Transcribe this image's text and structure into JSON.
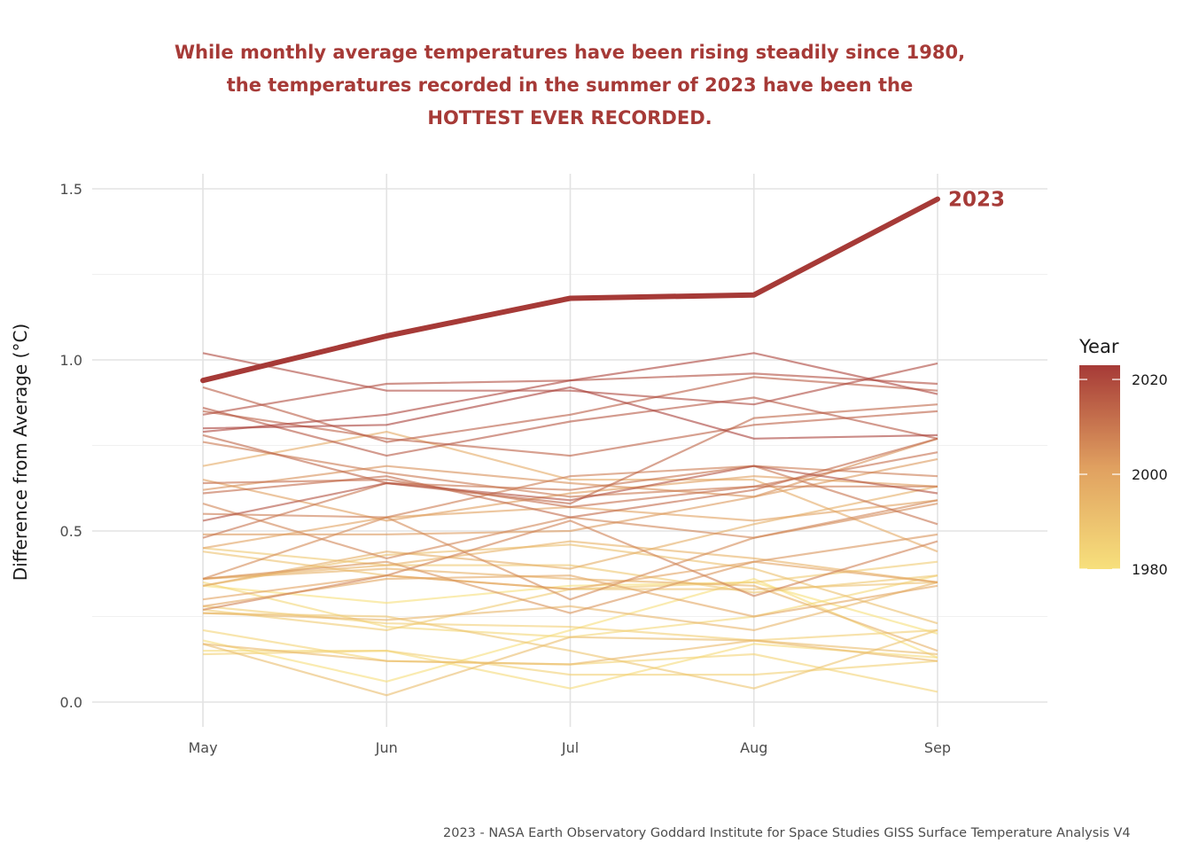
{
  "chart_data": {
    "type": "line",
    "title_lines": [
      "While monthly average temperatures have been rising steadily since 1980,",
      "the temperatures recorded in the summer of 2023 have been the",
      "HOTTEST EVER RECORDED."
    ],
    "xlabel": "",
    "ylabel": "Difference from Average (°C)",
    "categories": [
      "May",
      "Jun",
      "Jul",
      "Aug",
      "Sep"
    ],
    "ylim": [
      0,
      1.5
    ],
    "yticks": [
      "0.0",
      "0.5",
      "1.0",
      "1.5"
    ],
    "grid": true,
    "highlight": {
      "name": "2023",
      "values": [
        0.94,
        1.07,
        1.18,
        1.19,
        1.47
      ],
      "color": "#a63a37"
    },
    "legend": {
      "title": "Year",
      "placement": "right",
      "ticks": [
        "2020",
        "2000",
        "1980"
      ],
      "min_year": 1980,
      "max_year": 2023,
      "low_color": "#f7e07c",
      "mid_color": "#e0a060",
      "high_color": "#a63a37"
    },
    "series": [
      {
        "year": 1980,
        "values": [
          0.34,
          0.29,
          0.34,
          0.35,
          0.2
        ]
      },
      {
        "year": 1981,
        "values": [
          0.18,
          0.06,
          0.21,
          0.36,
          0.13
        ]
      },
      {
        "year": 1982,
        "values": [
          0.15,
          0.15,
          0.04,
          0.17,
          0.13
        ]
      },
      {
        "year": 1983,
        "values": [
          0.35,
          0.22,
          0.19,
          0.25,
          0.37
        ]
      },
      {
        "year": 1984,
        "values": [
          0.21,
          0.12,
          0.11,
          0.14,
          0.03
        ]
      },
      {
        "year": 1985,
        "values": [
          0.14,
          0.15,
          0.08,
          0.08,
          0.12
        ]
      },
      {
        "year": 1986,
        "values": [
          0.28,
          0.23,
          0.22,
          0.18,
          0.21
        ]
      },
      {
        "year": 1987,
        "values": [
          0.27,
          0.21,
          0.33,
          0.35,
          0.41
        ]
      },
      {
        "year": 1988,
        "values": [
          0.45,
          0.4,
          0.4,
          0.32,
          0.37
        ]
      },
      {
        "year": 1989,
        "values": [
          0.26,
          0.25,
          0.15,
          0.04,
          0.21
        ]
      },
      {
        "year": 1990,
        "values": [
          0.44,
          0.37,
          0.33,
          0.33,
          0.35
        ]
      },
      {
        "year": 1991,
        "values": [
          0.34,
          0.43,
          0.46,
          0.39,
          0.23
        ]
      },
      {
        "year": 1992,
        "values": [
          0.17,
          0.02,
          0.19,
          0.18,
          0.14
        ]
      },
      {
        "year": 1993,
        "values": [
          0.17,
          0.12,
          0.11,
          0.18,
          0.12
        ]
      },
      {
        "year": 1994,
        "values": [
          0.26,
          0.24,
          0.28,
          0.21,
          0.35
        ]
      },
      {
        "year": 1995,
        "values": [
          0.36,
          0.4,
          0.47,
          0.42,
          0.35
        ]
      },
      {
        "year": 1996,
        "values": [
          0.36,
          0.39,
          0.36,
          0.34,
          0.15
        ]
      },
      {
        "year": 1997,
        "values": [
          0.34,
          0.44,
          0.39,
          0.52,
          0.63
        ]
      },
      {
        "year": 1998,
        "values": [
          0.69,
          0.79,
          0.65,
          0.65,
          0.44
        ]
      },
      {
        "year": 1999,
        "values": [
          0.28,
          0.36,
          0.37,
          0.25,
          0.34
        ]
      },
      {
        "year": 2000,
        "values": [
          0.3,
          0.37,
          0.33,
          0.41,
          0.35
        ]
      },
      {
        "year": 2001,
        "values": [
          0.45,
          0.54,
          0.57,
          0.53,
          0.59
        ]
      },
      {
        "year": 2002,
        "values": [
          0.65,
          0.53,
          0.61,
          0.66,
          0.63
        ]
      },
      {
        "year": 2003,
        "values": [
          0.49,
          0.49,
          0.5,
          0.6,
          0.71
        ]
      },
      {
        "year": 2004,
        "values": [
          0.36,
          0.41,
          0.26,
          0.41,
          0.49
        ]
      },
      {
        "year": 2005,
        "values": [
          0.62,
          0.69,
          0.64,
          0.6,
          0.77
        ]
      },
      {
        "year": 2006,
        "values": [
          0.36,
          0.54,
          0.3,
          0.48,
          0.58
        ]
      },
      {
        "year": 2007,
        "values": [
          0.58,
          0.42,
          0.54,
          0.48,
          0.59
        ]
      },
      {
        "year": 2008,
        "values": [
          0.27,
          0.37,
          0.53,
          0.31,
          0.47
        ]
      },
      {
        "year": 2009,
        "values": [
          0.55,
          0.54,
          0.66,
          0.69,
          0.66
        ]
      },
      {
        "year": 2010,
        "values": [
          0.76,
          0.67,
          0.6,
          0.63,
          0.63
        ]
      },
      {
        "year": 2011,
        "values": [
          0.48,
          0.64,
          0.62,
          0.69,
          0.52
        ]
      },
      {
        "year": 2012,
        "values": [
          0.64,
          0.65,
          0.57,
          0.63,
          0.73
        ]
      },
      {
        "year": 2013,
        "values": [
          0.61,
          0.66,
          0.54,
          0.62,
          0.77
        ]
      },
      {
        "year": 2014,
        "values": [
          0.78,
          0.64,
          0.58,
          0.83,
          0.87
        ]
      },
      {
        "year": 2015,
        "values": [
          0.85,
          0.77,
          0.72,
          0.81,
          0.85
        ]
      },
      {
        "year": 2016,
        "values": [
          0.92,
          0.76,
          0.84,
          0.95,
          0.91
        ]
      },
      {
        "year": 2017,
        "values": [
          0.86,
          0.72,
          0.82,
          0.89,
          0.77
        ]
      },
      {
        "year": 2018,
        "values": [
          0.53,
          0.64,
          0.59,
          0.69,
          0.61
        ]
      },
      {
        "year": 2019,
        "values": [
          0.84,
          0.93,
          0.94,
          0.96,
          0.93
        ]
      },
      {
        "year": 2020,
        "values": [
          1.02,
          0.91,
          0.91,
          0.87,
          0.99
        ]
      },
      {
        "year": 2021,
        "values": [
          0.79,
          0.84,
          0.94,
          1.02,
          0.9
        ]
      },
      {
        "year": 2022,
        "values": [
          0.8,
          0.81,
          0.92,
          0.77,
          0.78
        ]
      }
    ],
    "highlight_year": 2023
  },
  "caption": "2023 - NASA Earth Observatory Goddard Institute for Space Studies GISS Surface Temperature Analysis V4"
}
